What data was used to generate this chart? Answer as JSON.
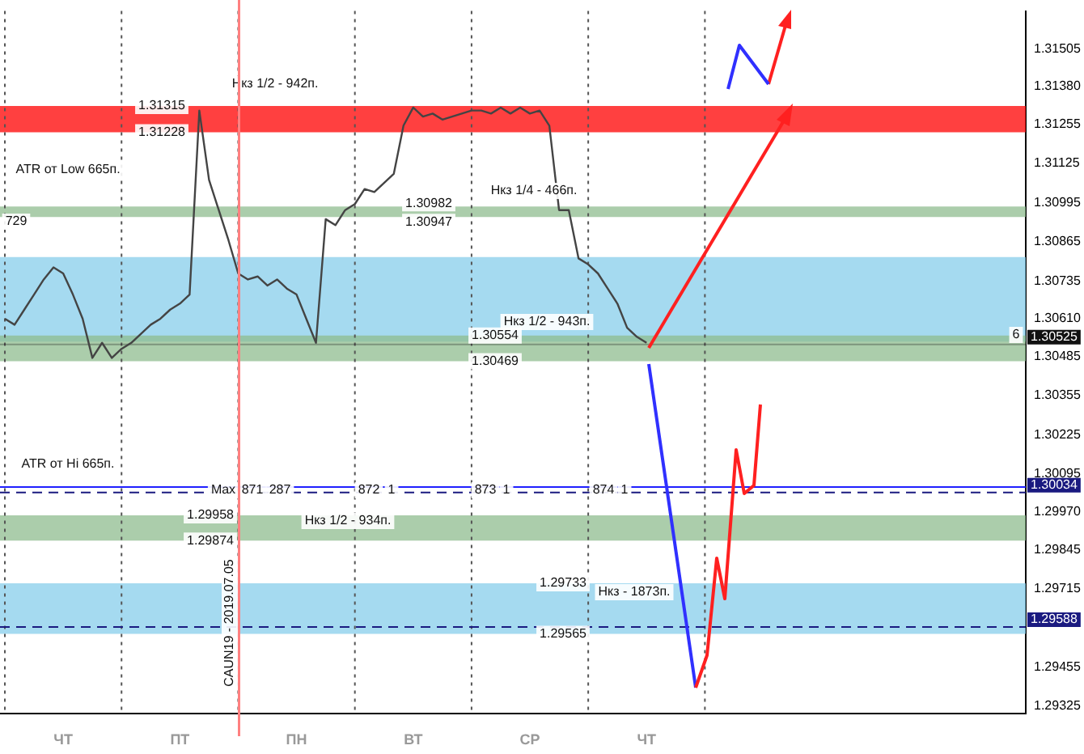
{
  "chart_data": {
    "type": "line",
    "grid": "x",
    "legend": false,
    "marker": "none",
    "line_style": "solid",
    "categories": [
      null,
      null,
      null,
      null,
      null,
      null,
      "ЧТ",
      null,
      null,
      null,
      null,
      null,
      null,
      null,
      null,
      null,
      null,
      null,
      "ПТ",
      null,
      null,
      null,
      null,
      null,
      null,
      null,
      null,
      null,
      null,
      null,
      "ПН",
      null,
      null,
      null,
      null,
      null,
      null,
      null,
      null,
      null,
      null,
      null,
      "ВТ",
      null,
      null,
      null,
      null,
      null,
      null,
      null,
      null,
      null,
      null,
      null,
      "СР",
      null,
      null,
      null,
      null,
      null,
      null,
      null,
      null,
      null,
      null,
      null,
      "ЧТ"
    ],
    "series": [
      {
        "color": "#444444",
        "values": [
          1.3061,
          1.3059,
          1.3064,
          1.3069,
          1.3074,
          1.3078,
          1.3076,
          1.3069,
          1.3061,
          1.3048,
          1.3053,
          1.3048,
          1.3051,
          1.3053,
          1.3056,
          1.3059,
          1.3061,
          1.3064,
          1.3066,
          1.3069,
          1.313,
          1.3107,
          1.3097,
          1.3087,
          1.3076,
          1.3074,
          1.3075,
          1.3072,
          1.3074,
          1.3071,
          1.3069,
          1.3061,
          1.3053,
          1.3094,
          1.3092,
          1.3097,
          1.3099,
          1.3104,
          1.3103,
          1.3106,
          1.3109,
          1.3125,
          1.3131,
          1.3128,
          1.3129,
          1.3127,
          1.3128,
          1.3129,
          1.313,
          1.313,
          1.3129,
          1.3131,
          1.3129,
          1.3131,
          1.3129,
          1.313,
          1.3125,
          1.3097,
          1.3097,
          1.3081,
          1.3079,
          1.3076,
          1.3071,
          1.3066,
          1.3058,
          1.3055,
          1.3053
        ]
      }
    ],
    "ylim": [
      1.293,
      1.3163
    ],
    "yticks": [
      1.31505,
      {
        "value": 1.3138,
        "label": "1.31380"
      },
      1.31255,
      1.31125,
      1.30995,
      1.30865,
      1.30735,
      {
        "value": 1.3061,
        "label": "1.30610"
      },
      1.30485,
      1.30355,
      1.30225,
      1.30095,
      {
        "value": 1.2997,
        "label": "1.29970"
      },
      1.29845,
      1.29715,
      1.29455,
      1.29325
    ],
    "bands": [
      {
        "axis": "y",
        "from": 1.30534,
        "to": 1.30814,
        "color": "#87ceeb"
      },
      {
        "axis": "y",
        "from": 1.31228,
        "to": 1.31315,
        "color": "#ff0000"
      },
      {
        "axis": "y",
        "from": 1.30947,
        "to": 1.30982,
        "color": "#8fbc8f"
      },
      {
        "axis": "y",
        "from": 1.30469,
        "to": 1.30554,
        "color": "#8fbc8f"
      },
      {
        "axis": "y",
        "from": 1.29874,
        "to": 1.29958,
        "color": "#8fbc8f"
      },
      {
        "axis": "y",
        "from": 1.29565,
        "to": 1.29733,
        "color": "#87ceeb"
      }
    ],
    "ref_lines": [
      {
        "axis": "y",
        "value": 1.30525,
        "color": "#111111",
        "line_style": "solid",
        "label": "1.30525"
      },
      {
        "axis": "y",
        "value": 1.30034,
        "color": "#1a1a80",
        "line_style": "dashed",
        "label": "1.30034"
      },
      {
        "axis": "y",
        "value": 1.29588,
        "color": "#1a1a80",
        "line_style": "dashed",
        "label": "1.29588"
      },
      {
        "axis": "y",
        "value": 1.30052,
        "color": "#2020ff",
        "line_style": "solid"
      }
    ],
    "annotations": [
      {
        "text": "1.31315",
        "y": 1.31315
      },
      {
        "text": "1.31228",
        "y": 1.31228
      },
      "Нкз 1/2 - 942п.",
      "ATR от Low 665п.",
      "729",
      {
        "text": "1.30982",
        "y": 1.30982
      },
      {
        "text": "1.30947",
        "y": 1.30947
      },
      "Нкз 1/4 - 466п.",
      {
        "text": "1.30554",
        "y": 1.30554
      },
      {
        "text": "1.30469",
        "y": 1.30469
      },
      "Нкз 1/2 - 943п.",
      "6",
      "ATR от Hi 665п.",
      "Max",
      "871",
      "287",
      "872",
      "1",
      "873",
      "1",
      "874",
      "1",
      {
        "text": "1.29958",
        "y": 1.29958
      },
      {
        "text": "1.29874",
        "y": 1.29874
      },
      "Нкз 1/2 - 934п.",
      {
        "text": "1.29733",
        "y": 1.29733
      },
      {
        "text": "1.29565",
        "y": 1.29565
      },
      "Нкз - 1873п.",
      "CAUN19 - 2019.07.05"
    ]
  }
}
